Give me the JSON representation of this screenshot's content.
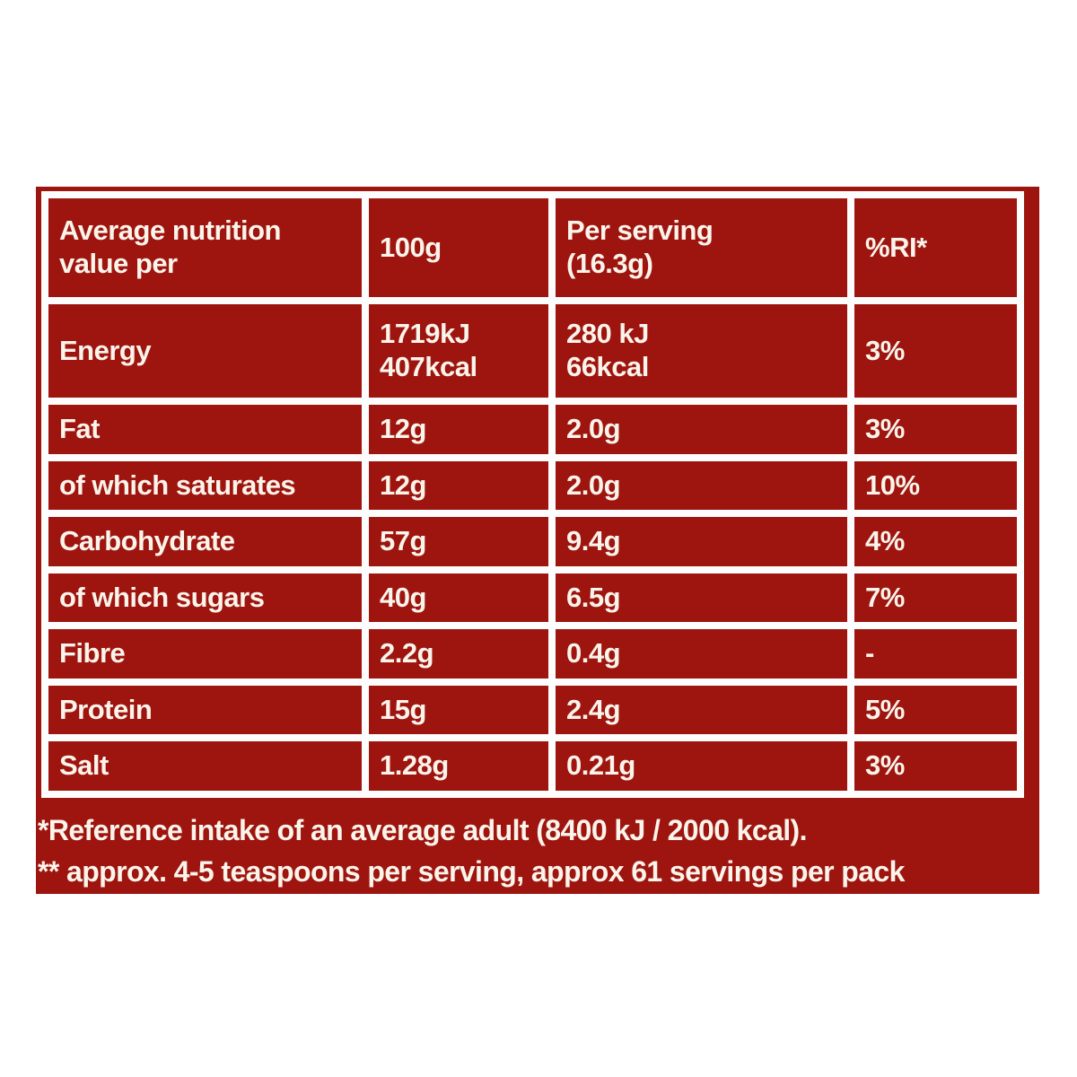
{
  "colors": {
    "panel_red": "#9E150F",
    "grid_white": "#FDFDFD",
    "text_cream": "#FAF4EB",
    "page_background": "#FFFFFF"
  },
  "table": {
    "header": {
      "label_col": "Average nutrition\nvalue per",
      "per_100g_col": "100g",
      "per_serving_col": "Per serving\n(16.3g)",
      "ri_col": "%RI*"
    },
    "rows": [
      {
        "label": "Energy",
        "per_100g": "1719kJ\n407kcal",
        "per_serving": "280 kJ\n66kcal",
        "ri": "3%"
      },
      {
        "label": "Fat",
        "per_100g": "12g",
        "per_serving": "2.0g",
        "ri": "3%"
      },
      {
        "label": "of which saturates",
        "per_100g": "12g",
        "per_serving": "2.0g",
        "ri": "10%"
      },
      {
        "label": "Carbohydrate",
        "per_100g": "57g",
        "per_serving": "9.4g",
        "ri": "4%"
      },
      {
        "label": "of which sugars",
        "per_100g": "40g",
        "per_serving": "6.5g",
        "ri": "7%"
      },
      {
        "label": "Fibre",
        "per_100g": "2.2g",
        "per_serving": "0.4g",
        "ri": "-"
      },
      {
        "label": "Protein",
        "per_100g": "15g",
        "per_serving": "2.4g",
        "ri": "5%"
      },
      {
        "label": "Salt",
        "per_100g": "1.28g",
        "per_serving": "0.21g",
        "ri": "3%"
      }
    ]
  },
  "footnotes": [
    "*Reference intake of an average adult (8400 kJ / 2000 kcal).",
    "** approx. 4-5 teaspoons per serving, approx 61 servings per pack"
  ]
}
